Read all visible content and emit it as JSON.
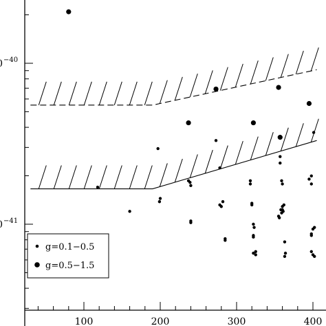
{
  "chart_data": {
    "type": "scatter",
    "title": "",
    "xlabel": "",
    "ylabel": "",
    "x_ticks": [
      100,
      200,
      300,
      400
    ],
    "x_tick_labels": [
      "100",
      "200",
      "300",
      "400"
    ],
    "y_tick_labels": [
      {
        "value": -40,
        "base": "0",
        "exponent": "−40"
      },
      {
        "value": -41,
        "base": "0",
        "exponent": "−41"
      }
    ],
    "xlim": [
      30,
      405
    ],
    "ylim": [
      -41.45,
      -39.7
    ],
    "y_scale": "log",
    "grid": false,
    "legend_position": "bottom-left",
    "series": [
      {
        "name": "g=0.1−0.5",
        "marker_size": "small",
        "points": [
          [
            118,
            -40.77
          ],
          [
            160,
            -40.92
          ],
          [
            197,
            -40.53
          ],
          [
            199,
            -40.86
          ],
          [
            200,
            -40.84
          ],
          [
            237,
            -40.73
          ],
          [
            239,
            -40.74
          ],
          [
            240,
            -40.76
          ],
          [
            240,
            -40.98
          ],
          [
            240,
            -40.99
          ],
          [
            273,
            -40.48
          ],
          [
            278,
            -40.65
          ],
          [
            278,
            -40.88
          ],
          [
            280,
            -40.89
          ],
          [
            282,
            -40.86
          ],
          [
            285,
            -41.09
          ],
          [
            285,
            -41.1
          ],
          [
            318,
            -40.73
          ],
          [
            318,
            -40.75
          ],
          [
            320,
            -40.87
          ],
          [
            320,
            -40.88
          ],
          [
            322,
            -41.0
          ],
          [
            323,
            -41.02
          ],
          [
            322,
            -41.07
          ],
          [
            322,
            -41.08
          ],
          [
            322,
            -41.18
          ],
          [
            325,
            -41.19
          ],
          [
            325,
            -41.17
          ],
          [
            357,
            -40.58
          ],
          [
            357,
            -40.62
          ],
          [
            359,
            -40.73
          ],
          [
            360,
            -40.75
          ],
          [
            358,
            -40.91
          ],
          [
            359,
            -40.93
          ],
          [
            360,
            -40.91
          ],
          [
            361,
            -40.92
          ],
          [
            360,
            -40.89
          ],
          [
            362,
            -40.88
          ],
          [
            355,
            -40.95
          ],
          [
            356,
            -40.96
          ],
          [
            363,
            -41.11
          ],
          [
            364,
            -41.18
          ],
          [
            363,
            -41.2
          ],
          [
            395,
            -40.72
          ],
          [
            398,
            -40.7
          ],
          [
            398,
            -40.75
          ],
          [
            398,
            -41.06
          ],
          [
            398,
            -41.07
          ],
          [
            400,
            -41.03
          ],
          [
            402,
            -41.02
          ],
          [
            398,
            -41.17
          ],
          [
            400,
            -41.19
          ],
          [
            402,
            -41.2
          ],
          [
            401,
            -40.43
          ]
        ]
      },
      {
        "name": "g=0.5−1.5",
        "marker_size": "large",
        "points": [
          [
            80,
            -39.68
          ],
          [
            237,
            -40.37
          ],
          [
            273,
            -40.16
          ],
          [
            322,
            -40.37
          ],
          [
            355,
            -40.15
          ],
          [
            357,
            -40.46
          ],
          [
            395,
            -40.25
          ]
        ]
      }
    ],
    "limit_curves": [
      {
        "style": "dashed",
        "hatch": true,
        "points": [
          [
            30,
            -40.26
          ],
          [
            190,
            -40.26
          ],
          [
            405,
            -40.04
          ]
        ]
      },
      {
        "style": "solid",
        "hatch": true,
        "points": [
          [
            30,
            -40.78
          ],
          [
            190,
            -40.78
          ],
          [
            405,
            -40.48
          ]
        ]
      }
    ]
  }
}
